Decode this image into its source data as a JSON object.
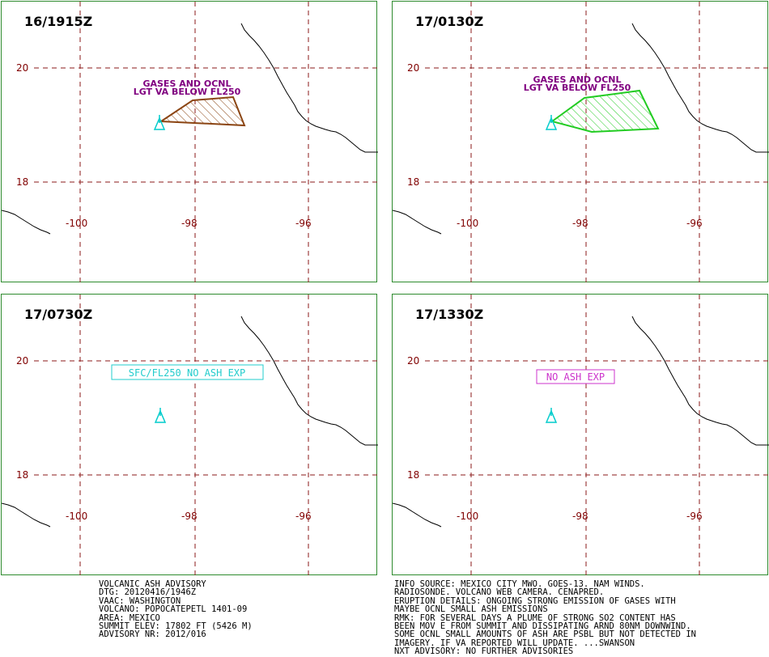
{
  "panels": [
    {
      "time": "16/1915Z",
      "label_lines": [
        "GASES AND OCNL",
        "LGT VA BELOW FL250"
      ],
      "box_label": "",
      "ash_color": "#8b4513"
    },
    {
      "time": "17/0130Z",
      "label_lines": [
        "GASES AND OCNL",
        "LGT VA BELOW FL250"
      ],
      "box_label": "",
      "ash_color": "#22cc22"
    },
    {
      "time": "17/0730Z",
      "label_lines": [],
      "box_label": "SFC/FL250 NO ASH EXP",
      "box_color": "#22cccc"
    },
    {
      "time": "17/1330Z",
      "label_lines": [],
      "box_label": "NO ASH EXP",
      "box_color": "#cc33cc"
    }
  ],
  "grid": {
    "lat_labels": [
      "20",
      "18"
    ],
    "lon_labels": [
      "-100",
      "-98",
      "-96"
    ],
    "grid_color": "#8b1a1a",
    "label_color": "#800000"
  },
  "volcano_color": "#00cccc",
  "advisory_left": [
    "VOLCANIC ASH ADVISORY",
    "DTG: 20120416/1946Z",
    "VAAC: WASHINGTON",
    "VOLCANO: POPOCATEPETL 1401-09",
    "AREA: MEXICO",
    "SUMMIT ELEV: 17802 FT (5426 M)",
    "ADVISORY NR: 2012/016"
  ],
  "advisory_right": [
    "INFO SOURCE: MEXICO CITY MWO. GOES-13. NAM WINDS.",
    "RADIOSONDE. VOLCANO WEB CAMERA. CENAPRED.",
    "ERUPTION DETAILS: ONGOING STRONG EMISSION OF GASES WITH",
    "MAYBE OCNL SMALL ASH EMISSIONS",
    "RMK: FOR SEVERAL DAYS A PLUME OF STRONG SO2 CONTENT HAS",
    "BEEN MOV E FROM SUMMIT AND DISSIPATING ARND 80NM DOWNWIND.",
    "SOME OCNL SMALL AMOUNTS OF ASH ARE PSBL BUT NOT DETECTED IN",
    "IMAGERY. IF VA REPORTED WILL UPDATE. ...SWANSON",
    "NXT ADVISORY: NO FURTHER ADVISORIES"
  ]
}
